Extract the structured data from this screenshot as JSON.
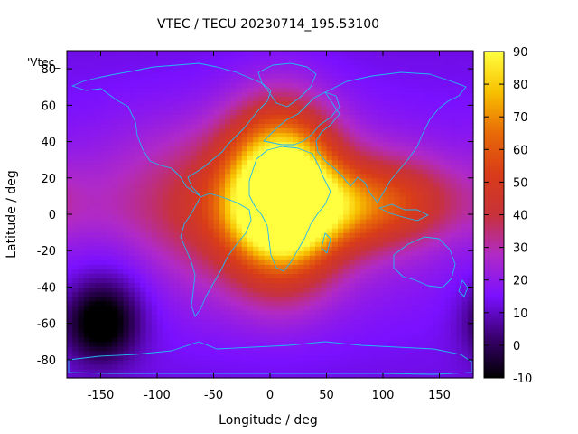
{
  "chart_data": {
    "type": "heatmap",
    "title": "VTEC / TECU 20230714_195.53100",
    "legend_key": "'Vtec_",
    "xlabel": "Longitude / deg",
    "ylabel": "Latitude / deg",
    "xlim": [
      -180,
      180
    ],
    "ylim": [
      -90,
      90
    ],
    "x_ticks": [
      -150,
      -100,
      -50,
      0,
      50,
      100,
      150
    ],
    "y_ticks": [
      -80,
      -60,
      -40,
      -20,
      0,
      20,
      40,
      60,
      80
    ],
    "colorbar": {
      "range": [
        -10,
        90
      ],
      "ticks": [
        -10,
        0,
        10,
        20,
        30,
        40,
        50,
        60,
        70,
        80,
        90
      ],
      "palette": [
        "#000000",
        "#3a0070",
        "#7a10ff",
        "#b02ac8",
        "#c8323a",
        "#d83c18",
        "#e86a08",
        "#f8c000",
        "#ffff40"
      ]
    },
    "grid_resolution_deg": [
      5,
      2.5
    ],
    "features": [
      {
        "lon": 10,
        "lat": 12,
        "value": 88,
        "lon_width": 32,
        "lat_width": 30
      },
      {
        "lon": 40,
        "lat": -1,
        "value": 16,
        "lon_width": 55,
        "lat_width": 15
      },
      {
        "lon": -20,
        "lat": 0,
        "value": 18,
        "lon_width": 90,
        "lat_width": 35
      },
      {
        "lon": 80,
        "lat": 8,
        "value": 25,
        "lon_width": 60,
        "lat_width": 15
      },
      {
        "lon": -60,
        "lat": 15,
        "value": 8,
        "lon_width": 55,
        "lat_width": 25
      },
      {
        "lon": 115,
        "lat": 12,
        "value": 8,
        "lon_width": 40,
        "lat_width": 20
      },
      {
        "lon": -150,
        "lat": -60,
        "value": -28,
        "lon_width": 22,
        "lat_width": 14
      },
      {
        "lon": -140,
        "lat": -40,
        "value": -8,
        "lon_width": 30,
        "lat_width": 20
      }
    ],
    "background_value": 18
  }
}
